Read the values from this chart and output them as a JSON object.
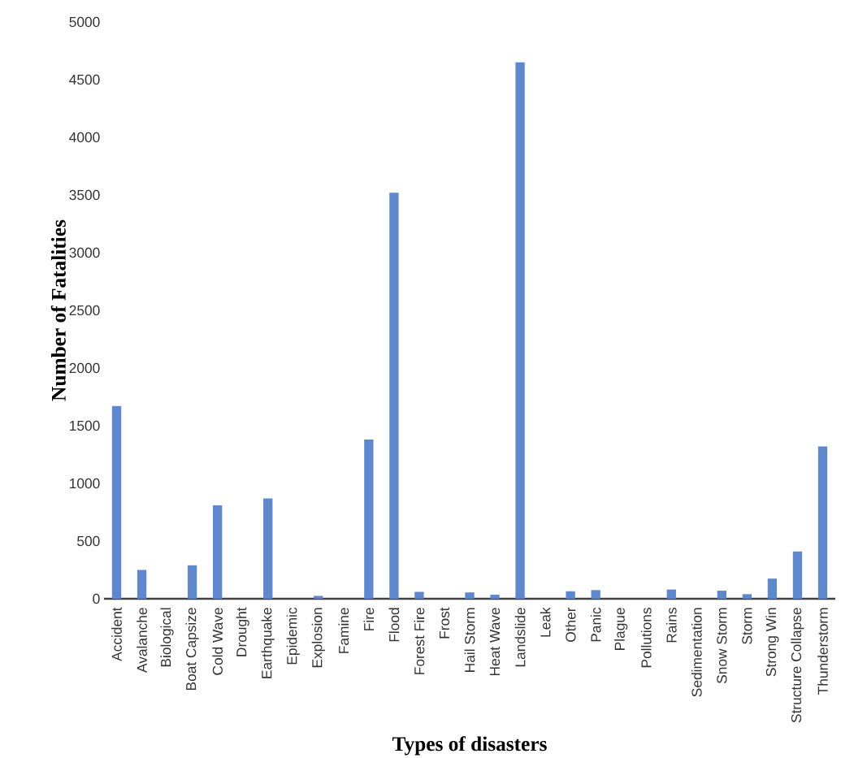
{
  "chart_data": {
    "type": "bar",
    "xlabel": "Types of disasters",
    "ylabel": "Number of Fatalities",
    "categories": [
      "Accident",
      "Avalanche",
      "Biological",
      "Boat Capsize",
      "Cold Wave",
      "Drought",
      "Earthquake",
      "Epidemic",
      "Explosion",
      "Famine",
      "Fire",
      "Flood",
      "Forest Fire",
      "Frost",
      "Hail Storm",
      "Heat Wave",
      "Landslide",
      "Leak",
      "Other",
      "Panic",
      "Plague",
      "Pollutions",
      "Rains",
      "Sedimentation",
      "Snow Storm",
      "Storm",
      "Strong Win",
      "Structure Collapse",
      "Thunderstorm"
    ],
    "values": [
      1670,
      250,
      0,
      290,
      810,
      0,
      870,
      0,
      25,
      0,
      1380,
      3520,
      60,
      0,
      55,
      35,
      4650,
      0,
      65,
      75,
      0,
      0,
      80,
      0,
      70,
      40,
      175,
      410,
      1320
    ],
    "color": "#5f87cb",
    "ylim": [
      0,
      5000
    ],
    "yticks": [
      0,
      500,
      1000,
      1500,
      2000,
      2500,
      3000,
      3500,
      4000,
      4500,
      5000
    ]
  }
}
